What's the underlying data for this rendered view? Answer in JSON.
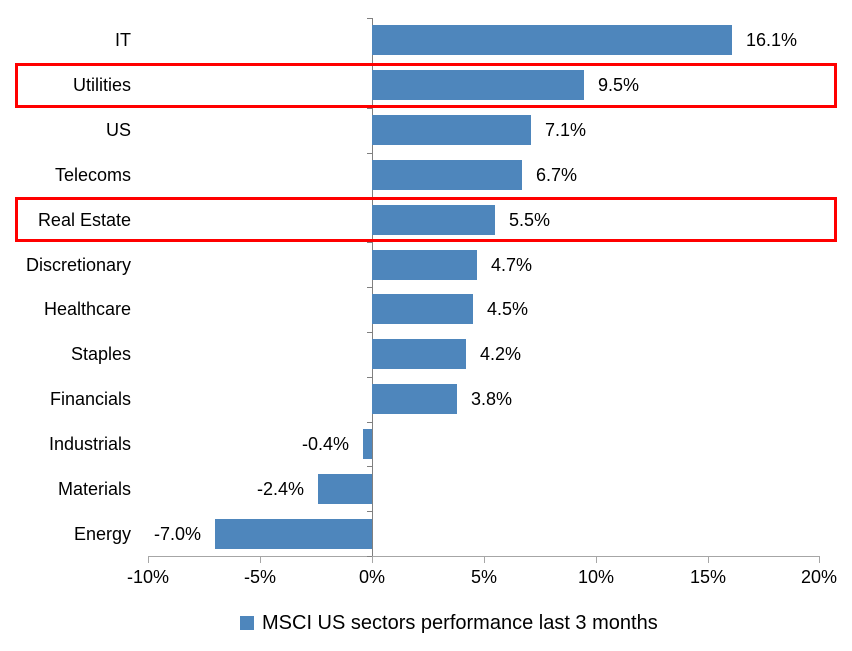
{
  "chart_data": {
    "type": "bar",
    "orientation": "horizontal",
    "title": "",
    "categories": [
      "IT",
      "Utilities",
      "US",
      "Telecoms",
      "Real Estate",
      "Discretionary",
      "Healthcare",
      "Staples",
      "Financials",
      "Industrials",
      "Materials",
      "Energy"
    ],
    "values": [
      16.1,
      9.5,
      7.1,
      6.7,
      5.5,
      4.7,
      4.5,
      4.2,
      3.8,
      -0.4,
      -2.4,
      -7.0
    ],
    "value_labels": [
      "16.1%",
      "9.5%",
      "7.1%",
      "6.7%",
      "5.5%",
      "4.7%",
      "4.5%",
      "4.2%",
      "3.8%",
      "-0.4%",
      "-2.4%",
      "-7.0%"
    ],
    "highlighted_categories": [
      "Utilities",
      "Real Estate"
    ],
    "xlim": [
      -10,
      20
    ],
    "x_tick_values": [
      -10,
      -5,
      0,
      5,
      10,
      15,
      20
    ],
    "x_tick_labels": [
      "-10%",
      "-5%",
      "0%",
      "5%",
      "10%",
      "15%",
      "20%"
    ],
    "xlabel": "",
    "ylabel": "",
    "grid": false,
    "legend_position": "bottom",
    "legend": {
      "label": "MSCI US sectors performance last 3 months",
      "swatch_icon": "legend-swatch-square"
    },
    "colors": {
      "bar": "#4E86BC",
      "highlight_border": "#FF0000",
      "h_axis_line": "#A6A6A6",
      "v_axis_line": "#808080",
      "text": "#000000"
    }
  }
}
